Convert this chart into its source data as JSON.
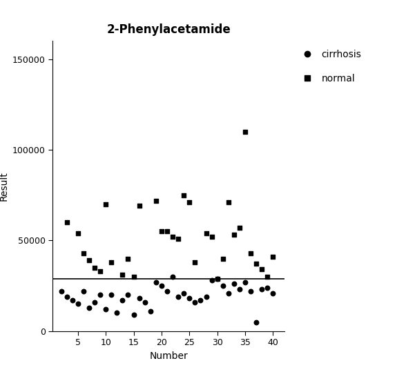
{
  "title": "2-Phenylacetamide",
  "xlabel": "Number",
  "ylabel": "Result",
  "ylim": [
    0,
    160000
  ],
  "xlim": [
    0.5,
    42
  ],
  "yticks": [
    0,
    50000,
    100000,
    150000
  ],
  "xticks": [
    5,
    10,
    15,
    20,
    25,
    30,
    35,
    40
  ],
  "threshold_line": 29000,
  "cirrhosis_x": [
    2,
    3,
    4,
    5,
    6,
    7,
    8,
    9,
    10,
    11,
    12,
    13,
    14,
    15,
    16,
    17,
    18,
    19,
    20,
    21,
    22,
    23,
    24,
    25,
    26,
    27,
    28,
    29,
    30,
    31,
    32,
    33,
    34,
    35,
    36,
    37,
    38,
    39,
    40
  ],
  "cirrhosis_y": [
    22000,
    19000,
    17000,
    15000,
    22000,
    13000,
    16000,
    20000,
    12000,
    20000,
    10000,
    17000,
    20000,
    9000,
    18000,
    16000,
    11000,
    27000,
    25000,
    22000,
    30000,
    19000,
    21000,
    18000,
    16000,
    17000,
    19000,
    28000,
    29000,
    25000,
    21000,
    26000,
    23000,
    27000,
    22000,
    5000,
    23000,
    24000,
    21000
  ],
  "normal_x": [
    3,
    5,
    6,
    7,
    8,
    9,
    10,
    11,
    13,
    14,
    15,
    16,
    19,
    20,
    21,
    22,
    23,
    24,
    25,
    26,
    28,
    29,
    30,
    31,
    32,
    33,
    34,
    35,
    36,
    37,
    38,
    39,
    40
  ],
  "normal_y": [
    60000,
    54000,
    43000,
    39000,
    35000,
    33000,
    70000,
    38000,
    31000,
    40000,
    30000,
    69000,
    72000,
    55000,
    55000,
    52000,
    51000,
    75000,
    71000,
    38000,
    54000,
    52000,
    29000,
    40000,
    71000,
    53000,
    57000,
    110000,
    43000,
    37000,
    34000,
    30000,
    41000
  ],
  "background_color": "#ffffff",
  "marker_color": "#000000",
  "line_color": "#000000",
  "title_fontsize": 12,
  "label_fontsize": 10,
  "tick_fontsize": 9,
  "legend_fontsize": 10
}
